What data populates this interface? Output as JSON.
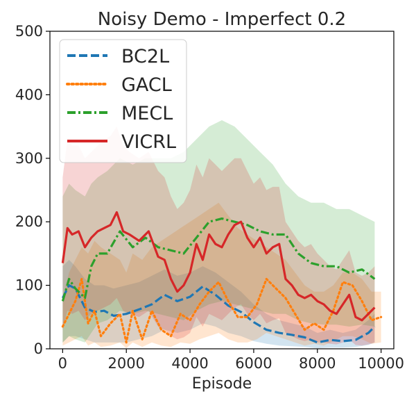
{
  "chart_data": {
    "type": "line",
    "title": "Noisy Demo - Imperfect 0.2",
    "xlabel": "Episode",
    "ylabel": "",
    "xlim": [
      -400,
      10400
    ],
    "ylim": [
      0,
      500
    ],
    "xticks": [
      0,
      2000,
      4000,
      6000,
      8000,
      10000
    ],
    "yticks": [
      0,
      100,
      200,
      300,
      400,
      500
    ],
    "grid": false,
    "legend_position": "upper-left",
    "series": [
      {
        "name": "BC2L",
        "color": "#1f77b4",
        "dash": "dashed",
        "x": [
          0,
          200,
          400,
          700,
          1000,
          1300,
          1600,
          2000,
          2400,
          2800,
          3200,
          3600,
          4000,
          4400,
          4800,
          5200,
          5600,
          6000,
          6400,
          6800,
          7200,
          7600,
          8000,
          8400,
          8800,
          9200,
          9600,
          9800
        ],
        "y": [
          80,
          100,
          95,
          65,
          58,
          60,
          52,
          55,
          62,
          70,
          85,
          75,
          82,
          98,
          85,
          68,
          58,
          42,
          30,
          25,
          22,
          18,
          10,
          14,
          12,
          14,
          25,
          35
        ],
        "upper": [
          130,
          140,
          130,
          110,
          100,
          100,
          95,
          100,
          105,
          115,
          125,
          115,
          120,
          130,
          120,
          105,
          90,
          70,
          55,
          45,
          40,
          35,
          25,
          30,
          25,
          30,
          45,
          55
        ],
        "lower": [
          10,
          20,
          20,
          15,
          10,
          10,
          10,
          10,
          15,
          20,
          30,
          25,
          30,
          40,
          35,
          25,
          20,
          12,
          8,
          5,
          4,
          3,
          1,
          2,
          2,
          3,
          6,
          10
        ]
      },
      {
        "name": "GACL",
        "color": "#ff7f0e",
        "dash": "dotted",
        "x": [
          0,
          200,
          400,
          600,
          800,
          1000,
          1200,
          1500,
          1800,
          2000,
          2200,
          2500,
          2800,
          3100,
          3400,
          3700,
          4000,
          4300,
          4600,
          4900,
          5200,
          5500,
          5800,
          6100,
          6400,
          6700,
          7000,
          7300,
          7600,
          7900,
          8200,
          8500,
          8800,
          9100,
          9400,
          9700,
          10000
        ],
        "y": [
          35,
          55,
          75,
          110,
          40,
          60,
          20,
          40,
          55,
          10,
          60,
          15,
          60,
          30,
          20,
          55,
          45,
          70,
          90,
          105,
          75,
          50,
          50,
          70,
          110,
          95,
          80,
          55,
          30,
          40,
          30,
          60,
          105,
          100,
          75,
          45,
          50
        ],
        "upper": [
          80,
          120,
          140,
          160,
          150,
          170,
          160,
          150,
          140,
          120,
          150,
          140,
          160,
          170,
          180,
          190,
          200,
          210,
          220,
          230,
          210,
          190,
          180,
          170,
          160,
          150,
          140,
          120,
          100,
          90,
          90,
          100,
          120,
          120,
          110,
          90,
          90
        ],
        "lower": [
          5,
          10,
          15,
          20,
          5,
          10,
          3,
          5,
          10,
          1,
          10,
          3,
          10,
          5,
          3,
          10,
          8,
          15,
          20,
          25,
          15,
          10,
          10,
          15,
          25,
          20,
          15,
          10,
          5,
          8,
          5,
          12,
          20,
          20,
          15,
          8,
          10
        ]
      },
      {
        "name": "MECL",
        "color": "#2ca02c",
        "dash": "dashdot",
        "x": [
          0,
          200,
          400,
          700,
          900,
          1100,
          1400,
          1800,
          2200,
          2600,
          3000,
          3400,
          3800,
          4200,
          4600,
          5000,
          5400,
          5800,
          6200,
          6600,
          7000,
          7400,
          7800,
          8200,
          8600,
          9000,
          9400,
          9800
        ],
        "y": [
          75,
          110,
          95,
          80,
          130,
          150,
          150,
          185,
          160,
          175,
          160,
          155,
          150,
          175,
          200,
          205,
          200,
          195,
          185,
          180,
          180,
          150,
          135,
          130,
          130,
          120,
          125,
          110
        ],
        "upper": [
          240,
          260,
          250,
          240,
          260,
          270,
          280,
          300,
          290,
          300,
          300,
          300,
          310,
          330,
          350,
          360,
          350,
          330,
          310,
          290,
          260,
          240,
          230,
          230,
          220,
          220,
          210,
          200
        ],
        "lower": [
          10,
          20,
          15,
          10,
          25,
          40,
          45,
          60,
          55,
          60,
          55,
          50,
          45,
          60,
          70,
          75,
          70,
          65,
          60,
          55,
          55,
          45,
          40,
          38,
          38,
          35,
          38,
          35
        ]
      },
      {
        "name": "VICRL",
        "color": "#d62728",
        "dash": "solid",
        "x": [
          0,
          150,
          300,
          500,
          700,
          900,
          1100,
          1300,
          1500,
          1700,
          1900,
          2100,
          2400,
          2700,
          3000,
          3200,
          3400,
          3600,
          3800,
          4000,
          4200,
          4400,
          4600,
          4800,
          5000,
          5200,
          5400,
          5600,
          5800,
          6000,
          6200,
          6400,
          6600,
          6800,
          7000,
          7200,
          7400,
          7600,
          7800,
          8000,
          8200,
          8400,
          8600,
          8800,
          9000,
          9200,
          9400,
          9600,
          9800
        ],
        "y": [
          135,
          190,
          180,
          185,
          160,
          175,
          185,
          190,
          195,
          215,
          185,
          180,
          170,
          185,
          145,
          140,
          110,
          90,
          100,
          120,
          165,
          140,
          180,
          165,
          160,
          180,
          195,
          200,
          175,
          160,
          175,
          150,
          160,
          165,
          110,
          100,
          85,
          80,
          85,
          75,
          70,
          60,
          55,
          70,
          85,
          50,
          45,
          55,
          65
        ],
        "upper": [
          270,
          330,
          320,
          320,
          300,
          310,
          320,
          330,
          335,
          350,
          320,
          310,
          300,
          310,
          280,
          270,
          240,
          220,
          230,
          250,
          290,
          270,
          300,
          290,
          280,
          290,
          300,
          300,
          280,
          260,
          270,
          250,
          255,
          255,
          200,
          185,
          170,
          160,
          165,
          150,
          140,
          130,
          125,
          140,
          155,
          120,
          115,
          120,
          130
        ],
        "lower": [
          30,
          60,
          55,
          60,
          45,
          55,
          60,
          65,
          70,
          80,
          60,
          55,
          50,
          60,
          35,
          30,
          20,
          15,
          18,
          25,
          50,
          35,
          55,
          50,
          45,
          55,
          65,
          70,
          55,
          45,
          55,
          40,
          45,
          48,
          25,
          20,
          15,
          12,
          15,
          10,
          10,
          8,
          7,
          10,
          15,
          6,
          5,
          7,
          10
        ]
      }
    ]
  }
}
